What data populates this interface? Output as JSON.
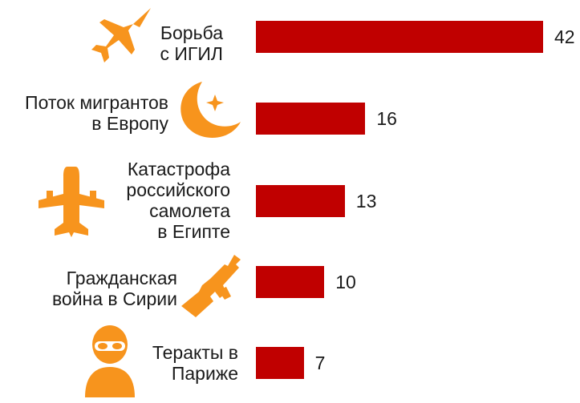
{
  "chart_data": {
    "type": "bar",
    "orientation": "horizontal",
    "categories": [
      "Борьба\nс ИГИЛ",
      "Поток мигрантов\nв Европу",
      "Катастрофа\nроссийского\nсамолета\nв Египте",
      "Гражданская\nвойна в Сирии",
      "Теракты в\nПариже"
    ],
    "values": [
      42,
      16,
      13,
      10,
      7
    ],
    "icons": [
      "fighter-jet-icon",
      "crescent-star-icon",
      "airplane-icon",
      "rifle-icon",
      "masked-person-icon"
    ],
    "bar_color": "#c00000",
    "icon_color": "#f7941d",
    "grid": false,
    "legend": "none"
  }
}
